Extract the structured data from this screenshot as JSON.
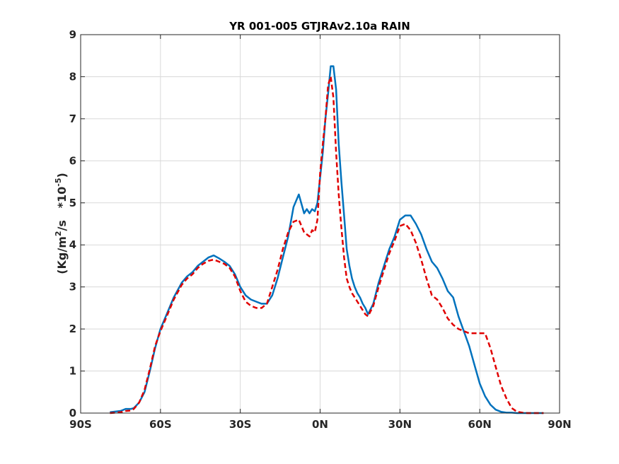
{
  "chart_data": {
    "type": "line",
    "title": "YR 001-005 GTJRAv2.10a RAIN",
    "ylabel": {
      "prefix": "(Kg/m",
      "sup1": "2",
      "middle": "/s   *10",
      "sup2": "-5",
      "suffix": ")"
    },
    "xlabel": "",
    "xlim": [
      -90,
      90
    ],
    "ylim": [
      0,
      9
    ],
    "x_ticks": [
      -90,
      -60,
      -30,
      0,
      30,
      60,
      90
    ],
    "x_tick_labels": [
      "90S",
      "60S",
      "30S",
      "0N",
      "30N",
      "60N",
      "90N"
    ],
    "y_ticks": [
      0,
      1,
      2,
      3,
      4,
      5,
      6,
      7,
      8,
      9
    ],
    "y_tick_labels": [
      "0",
      "1",
      "2",
      "3",
      "4",
      "5",
      "6",
      "7",
      "8",
      "9"
    ],
    "grid": true,
    "series": [
      {
        "color": "#0072BD",
        "style": "solid",
        "x": [
          -79,
          -75,
          -73,
          -71,
          -70,
          -68,
          -66,
          -64,
          -62,
          -60,
          -58,
          -55,
          -52,
          -50,
          -48,
          -46,
          -44,
          -42,
          -40,
          -38,
          -36,
          -34,
          -32,
          -30,
          -28,
          -26,
          -24,
          -22,
          -20,
          -18,
          -16,
          -14,
          -12,
          -10,
          -8,
          -6,
          -5,
          -4,
          -3,
          -2,
          -1,
          0,
          1,
          2,
          3,
          4,
          5,
          6,
          7,
          8,
          9,
          10,
          11,
          12,
          13,
          14,
          15,
          16,
          17,
          18,
          20,
          22,
          24,
          25,
          26,
          28,
          30,
          32,
          34,
          36,
          38,
          40,
          42,
          44,
          46,
          48,
          50,
          52,
          54,
          56,
          58,
          60,
          62,
          64,
          66,
          68,
          70,
          72,
          74,
          76,
          78,
          80,
          82,
          84
        ],
        "y": [
          0.02,
          0.05,
          0.1,
          0.1,
          0.12,
          0.25,
          0.5,
          1.0,
          1.55,
          2.0,
          2.3,
          2.75,
          3.1,
          3.25,
          3.35,
          3.5,
          3.6,
          3.7,
          3.75,
          3.68,
          3.6,
          3.5,
          3.3,
          3.0,
          2.8,
          2.7,
          2.65,
          2.6,
          2.6,
          2.8,
          3.2,
          3.7,
          4.2,
          4.9,
          5.2,
          4.75,
          4.85,
          4.75,
          4.85,
          4.8,
          5.0,
          5.6,
          6.2,
          7.0,
          7.6,
          8.25,
          8.25,
          7.7,
          6.4,
          5.5,
          4.7,
          3.9,
          3.5,
          3.2,
          3.0,
          2.85,
          2.75,
          2.6,
          2.5,
          2.35,
          2.6,
          3.1,
          3.5,
          3.7,
          3.9,
          4.2,
          4.6,
          4.7,
          4.7,
          4.5,
          4.25,
          3.9,
          3.6,
          3.45,
          3.2,
          2.9,
          2.75,
          2.3,
          1.95,
          1.6,
          1.15,
          0.7,
          0.4,
          0.2,
          0.08,
          0.03,
          0.01,
          0.01,
          0.0,
          0.0,
          0.0,
          0.0,
          0.0,
          0.0
        ]
      },
      {
        "color": "#E00000",
        "style": "dashed",
        "x": [
          -79,
          -75,
          -73,
          -71,
          -70,
          -68,
          -66,
          -64,
          -62,
          -60,
          -58,
          -55,
          -52,
          -50,
          -48,
          -46,
          -44,
          -42,
          -40,
          -38,
          -36,
          -34,
          -32,
          -30,
          -28,
          -26,
          -24,
          -22,
          -20,
          -18,
          -16,
          -14,
          -12,
          -10,
          -8,
          -6,
          -5,
          -4,
          -3,
          -2,
          -1,
          0,
          1,
          2,
          3,
          4,
          5,
          6,
          7,
          8,
          9,
          10,
          11,
          12,
          13,
          14,
          15,
          16,
          17,
          18,
          20,
          22,
          24,
          25,
          26,
          28,
          30,
          32,
          34,
          36,
          38,
          40,
          42,
          44,
          46,
          48,
          50,
          52,
          54,
          56,
          58,
          60,
          62,
          64,
          66,
          68,
          70,
          72,
          74,
          76,
          78,
          80,
          82,
          84
        ],
        "y": [
          0.0,
          0.02,
          0.05,
          0.06,
          0.1,
          0.25,
          0.55,
          1.05,
          1.6,
          1.95,
          2.25,
          2.7,
          3.05,
          3.2,
          3.3,
          3.45,
          3.55,
          3.62,
          3.65,
          3.6,
          3.55,
          3.45,
          3.25,
          2.9,
          2.65,
          2.55,
          2.5,
          2.5,
          2.6,
          3.0,
          3.4,
          3.9,
          4.3,
          4.55,
          4.6,
          4.3,
          4.25,
          4.2,
          4.35,
          4.3,
          4.6,
          5.7,
          6.4,
          7.0,
          7.8,
          8.0,
          7.5,
          6.2,
          5.2,
          4.4,
          3.7,
          3.2,
          3.0,
          2.85,
          2.75,
          2.65,
          2.55,
          2.45,
          2.35,
          2.3,
          2.55,
          3.0,
          3.4,
          3.6,
          3.8,
          4.1,
          4.45,
          4.5,
          4.35,
          4.05,
          3.65,
          3.2,
          2.8,
          2.7,
          2.5,
          2.25,
          2.1,
          2.0,
          1.95,
          1.9,
          1.9,
          1.9,
          1.9,
          1.55,
          1.1,
          0.65,
          0.35,
          0.12,
          0.03,
          0.01,
          0.0,
          0.0,
          0.0,
          0.0
        ]
      }
    ]
  }
}
